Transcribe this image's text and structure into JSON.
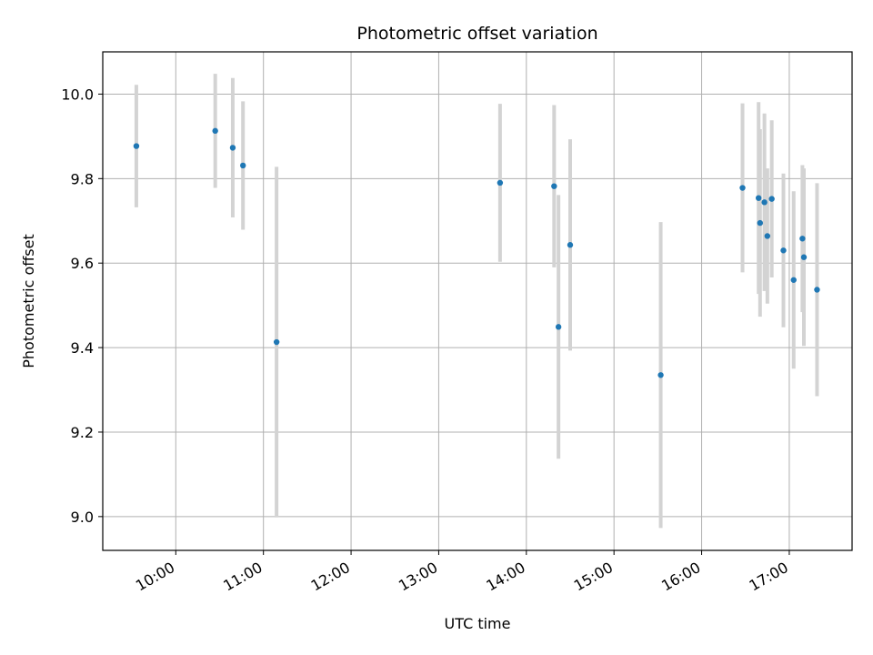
{
  "chart_data": {
    "type": "scatter",
    "title": "Photometric offset variation",
    "xlabel": "UTC time",
    "ylabel": "Photometric offset",
    "x_ticks": [
      "10:00",
      "11:00",
      "12:00",
      "13:00",
      "14:00",
      "15:00",
      "16:00",
      "17:00"
    ],
    "y_ticks": [
      "9.0",
      "9.2",
      "9.4",
      "9.6",
      "9.8",
      "10.0"
    ],
    "xlim": [
      "09:10",
      "17:43"
    ],
    "ylim": [
      8.92,
      10.1
    ],
    "grid": true,
    "series": [
      {
        "points": [
          {
            "x": "09:33",
            "y": 9.877,
            "err": 0.145
          },
          {
            "x": "10:27",
            "y": 9.913,
            "err": 0.135
          },
          {
            "x": "10:39",
            "y": 9.873,
            "err": 0.165
          },
          {
            "x": "10:46",
            "y": 9.831,
            "err": 0.152
          },
          {
            "x": "11:09",
            "y": 9.413,
            "err": 0.415
          },
          {
            "x": "13:42",
            "y": 9.79,
            "err": 0.187
          },
          {
            "x": "14:19",
            "y": 9.782,
            "err": 0.192
          },
          {
            "x": "14:22",
            "y": 9.449,
            "err": 0.312
          },
          {
            "x": "14:30",
            "y": 9.643,
            "err": 0.25
          },
          {
            "x": "15:32",
            "y": 9.335,
            "err": 0.362
          },
          {
            "x": "16:28",
            "y": 9.778,
            "err": 0.2
          },
          {
            "x": "16:39",
            "y": 9.754,
            "err": 0.227
          },
          {
            "x": "16:40",
            "y": 9.695,
            "err": 0.222
          },
          {
            "x": "16:43",
            "y": 9.744,
            "err": 0.21
          },
          {
            "x": "16:45",
            "y": 9.664,
            "err": 0.16
          },
          {
            "x": "16:48",
            "y": 9.752,
            "err": 0.186
          },
          {
            "x": "16:56",
            "y": 9.63,
            "err": 0.182
          },
          {
            "x": "17:03",
            "y": 9.56,
            "err": 0.21
          },
          {
            "x": "17:09",
            "y": 9.658,
            "err": 0.174
          },
          {
            "x": "17:10",
            "y": 9.614,
            "err": 0.21
          },
          {
            "x": "17:19",
            "y": 9.537,
            "err": 0.252
          }
        ]
      }
    ],
    "colors": {
      "marker": "#1f77b4",
      "errorbar": "#d3d3d3",
      "grid": "#b0b0b0",
      "axes": "#000000"
    }
  }
}
